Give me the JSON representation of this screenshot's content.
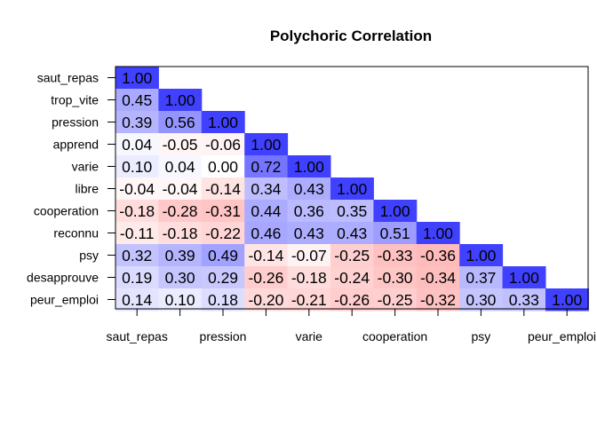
{
  "chart_data": {
    "type": "heatmap",
    "title": "Polychoric Correlation",
    "row_labels": [
      "saut_repas",
      "trop_vite",
      "pression",
      "apprend",
      "varie",
      "libre",
      "cooperation",
      "reconnu",
      "psy",
      "desapprouve",
      "peur_emploi"
    ],
    "col_tick_labels": [
      "saut_repas",
      "pression",
      "varie",
      "cooperation",
      "psy",
      "peur_emploi"
    ],
    "col_tick_label_column_index": [
      0,
      2,
      4,
      6,
      8,
      10
    ],
    "lower_triangle_only": true,
    "value_range": [
      -1,
      1
    ],
    "colors": {
      "positive": "#0000FF",
      "negative": "#FF0000",
      "zero": "#FFFFFF"
    },
    "values": [
      [
        "1.00"
      ],
      [
        "0.45",
        "1.00"
      ],
      [
        "0.39",
        "0.56",
        "1.00"
      ],
      [
        "0.04",
        "-0.05",
        "-0.06",
        "1.00"
      ],
      [
        "0.10",
        "0.04",
        "0.00",
        "0.72",
        "1.00"
      ],
      [
        "-0.04",
        "-0.04",
        "-0.14",
        "0.34",
        "0.43",
        "1.00"
      ],
      [
        "-0.18",
        "-0.28",
        "-0.31",
        "0.44",
        "0.36",
        "0.35",
        "1.00"
      ],
      [
        "-0.11",
        "-0.18",
        "-0.22",
        "0.46",
        "0.43",
        "0.43",
        "0.51",
        "1.00"
      ],
      [
        "0.32",
        "0.39",
        "0.49",
        "-0.14",
        "-0.07",
        "-0.25",
        "-0.33",
        "-0.36",
        "1.00"
      ],
      [
        "0.19",
        "0.30",
        "0.29",
        "-0.26",
        "-0.18",
        "-0.24",
        "-0.30",
        "-0.34",
        "0.37",
        "1.00"
      ],
      [
        "0.14",
        "0.10",
        "0.18",
        "-0.20",
        "-0.21",
        "-0.26",
        "-0.25",
        "-0.32",
        "0.30",
        "0.33",
        "1.00"
      ]
    ]
  }
}
